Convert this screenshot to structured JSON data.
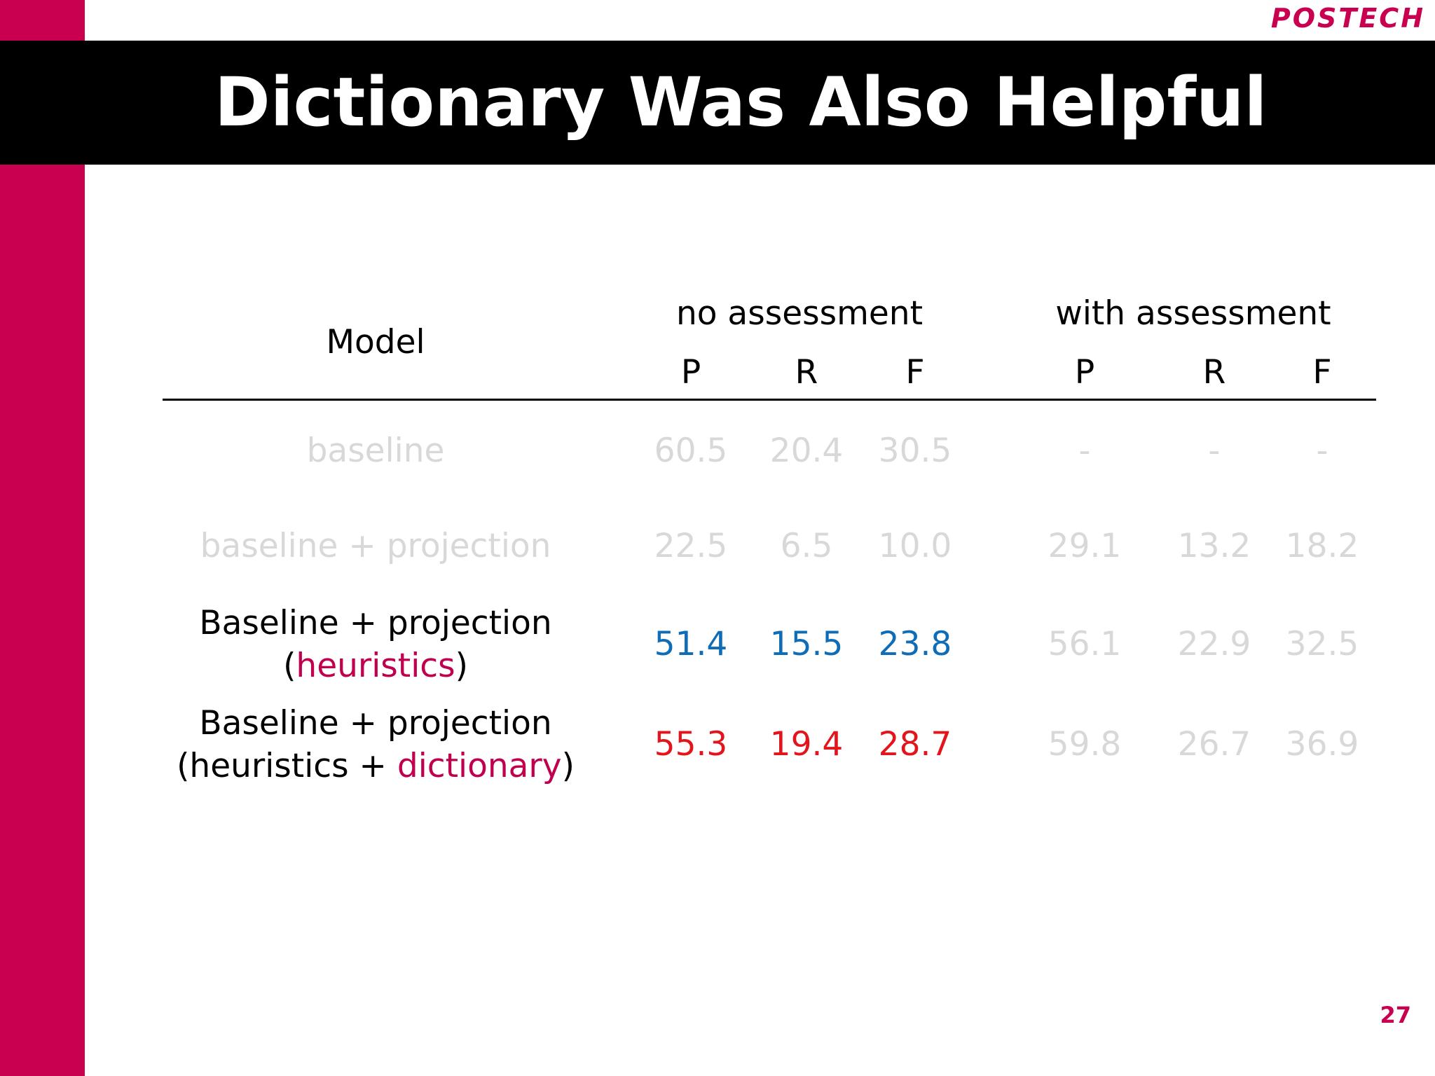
{
  "logo": "POSTECH",
  "title": "Dictionary Was Also Helpful",
  "colors": {
    "brand": "#c8004f",
    "title_band": "#000000",
    "muted_text": "#d8d8d8",
    "blue_value": "#0e6db6",
    "red_value": "#e3141b",
    "accent_word": "#c0004e"
  },
  "table": {
    "model_header": "Model",
    "group_headers": [
      "no assessment",
      "with assessment"
    ],
    "sub_headers": [
      "P",
      "R",
      "F",
      "P",
      "R",
      "F"
    ],
    "rows": [
      {
        "model": "baseline",
        "style": "muted",
        "values": [
          "60.5",
          "20.4",
          "30.5",
          "-",
          "-",
          "-"
        ]
      },
      {
        "model": "baseline + projection",
        "style": "muted",
        "values": [
          "22.5",
          "6.5",
          "10.0",
          "29.1",
          "13.2",
          "18.2"
        ]
      },
      {
        "model_line1": "Baseline + projection",
        "model_line2_prefix": "(",
        "model_line2_accent": "heuristics",
        "model_line2_suffix": ")",
        "style": "blue",
        "values": [
          "51.4",
          "15.5",
          "23.8",
          "56.1",
          "22.9",
          "32.5"
        ]
      },
      {
        "model_line1": "Baseline + projection",
        "model_line2_prefix": "(heuristics + ",
        "model_line2_accent": "dictionary",
        "model_line2_suffix": ")",
        "style": "red",
        "values": [
          "55.3",
          "19.4",
          "28.7",
          "59.8",
          "26.7",
          "36.9"
        ]
      }
    ]
  },
  "page_number": "27"
}
